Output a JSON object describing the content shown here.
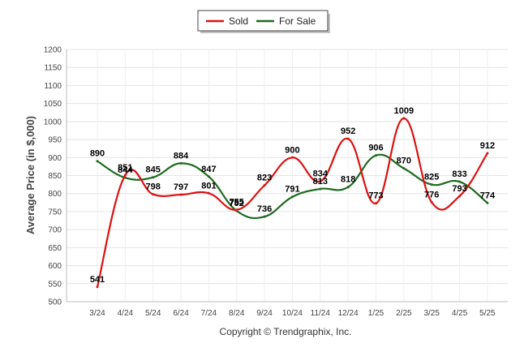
{
  "chart_data": {
    "type": "line",
    "categories": [
      "3/24",
      "4/24",
      "5/24",
      "6/24",
      "7/24",
      "8/24",
      "9/24",
      "10/24",
      "11/24",
      "12/24",
      "1/25",
      "2/25",
      "3/25",
      "4/25",
      "5/25"
    ],
    "series": [
      {
        "name": "Sold",
        "color": "#dd1111",
        "values": [
          541,
          851,
          798,
          797,
          801,
          755,
          823,
          900,
          834,
          952,
          773,
          1009,
          776,
          793,
          912
        ]
      },
      {
        "name": "For Sale",
        "color": "#1e6b1e",
        "values": [
          890,
          844,
          845,
          884,
          847,
          752,
          736,
          791,
          813,
          818,
          906,
          870,
          825,
          833,
          774
        ]
      }
    ],
    "ylabel": "Average Price (in $,000)",
    "xlabel": "",
    "ylim": [
      500,
      1200
    ],
    "yticks": [
      500,
      550,
      600,
      650,
      700,
      750,
      800,
      850,
      900,
      950,
      1000,
      1050,
      1100,
      1150,
      1200
    ],
    "grid": true,
    "legend_position": "top-center"
  },
  "footer": {
    "copyright": "Copyright © Trendgraphix, Inc."
  }
}
